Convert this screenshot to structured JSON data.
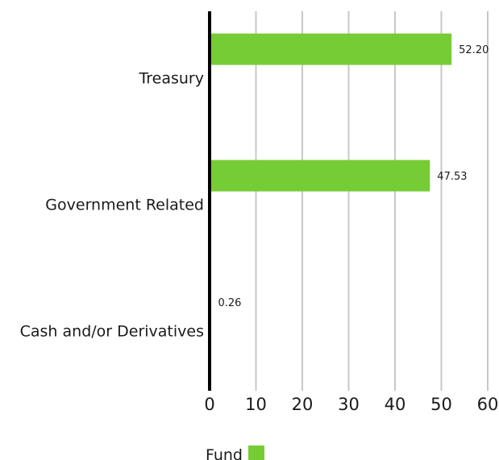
{
  "chart_data": {
    "type": "bar",
    "orientation": "horizontal",
    "categories": [
      "Treasury",
      "Government Related",
      "Cash and/or Derivatives"
    ],
    "series": [
      {
        "name": "Fund",
        "values": [
          52.2,
          47.53,
          0.26
        ],
        "color": "#76cc35"
      }
    ],
    "data_labels": [
      "52.20",
      "47.53",
      "0.26"
    ],
    "xlim": [
      0,
      60
    ],
    "x_ticks": [
      "0",
      "10",
      "20",
      "30",
      "40",
      "50",
      "60"
    ],
    "grid": true,
    "legend": {
      "position": "bottom",
      "label": "Fund"
    }
  }
}
